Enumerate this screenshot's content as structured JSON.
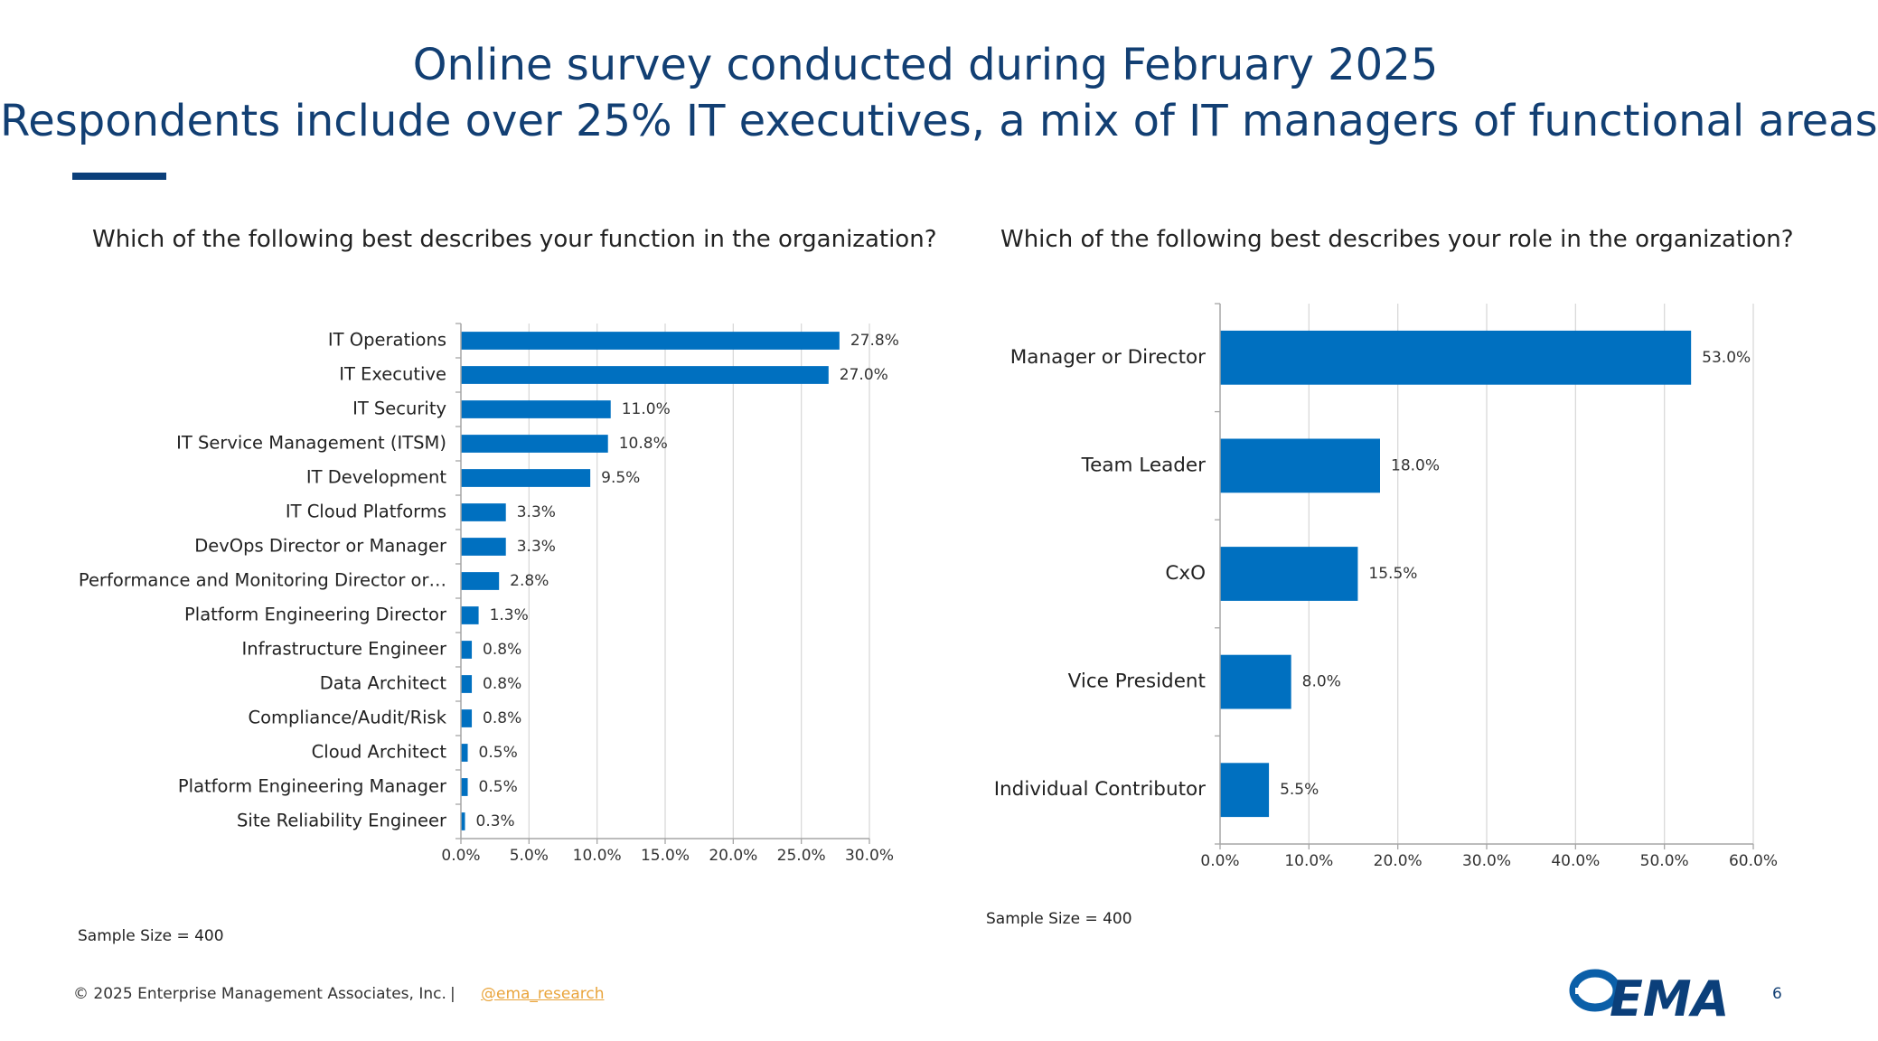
{
  "slide": {
    "title_line1": "Online survey conducted during February 2025",
    "title_line2": "Respondents include over 25% IT executives, a mix of IT managers of functional areas",
    "page_number": "6"
  },
  "footer": {
    "copyright": "© 2025 Enterprise Management Associates, Inc.",
    "separator": "|",
    "handle": "@ema_research"
  },
  "logo": {
    "text": "EMA"
  },
  "colors": {
    "bar": "#0070c0",
    "title": "#123f73",
    "accent_bar": "#0b3f7a",
    "handle": "#e9a43b",
    "grid": "#d9d9d9",
    "axis": "#a6a6a6"
  },
  "chart_data": [
    {
      "type": "bar",
      "orientation": "horizontal",
      "title": "Which of the following best describes your function in the organization?",
      "categories": [
        "IT Operations",
        "IT Executive",
        "IT Security",
        "IT Service Management (ITSM)",
        "IT Development",
        "IT Cloud Platforms",
        "DevOps Director or Manager",
        "Performance and Monitoring Director or…",
        "Platform Engineering Director",
        "Infrastructure Engineer",
        "Data Architect",
        "Compliance/Audit/Risk",
        "Cloud Architect",
        "Platform Engineering Manager",
        "Site Reliability Engineer"
      ],
      "values": [
        27.8,
        27.0,
        11.0,
        10.8,
        9.5,
        3.3,
        3.3,
        2.8,
        1.3,
        0.8,
        0.8,
        0.8,
        0.5,
        0.5,
        0.3
      ],
      "value_labels": [
        "27.8%",
        "27.0%",
        "11.0%",
        "10.8%",
        "9.5%",
        "3.3%",
        "3.3%",
        "2.8%",
        "1.3%",
        "0.8%",
        "0.8%",
        "0.8%",
        "0.5%",
        "0.5%",
        "0.3%"
      ],
      "xlim": [
        0,
        30
      ],
      "x_ticks": [
        0,
        5,
        10,
        15,
        20,
        25,
        30
      ],
      "x_tick_labels": [
        "0.0%",
        "5.0%",
        "10.0%",
        "15.0%",
        "20.0%",
        "25.0%",
        "30.0%"
      ],
      "grid": true,
      "sample_size": "Sample Size = 400"
    },
    {
      "type": "bar",
      "orientation": "horizontal",
      "title": "Which of the following best describes your role in the organization?",
      "categories": [
        "Manager or Director",
        "Team Leader",
        "CxO",
        "Vice President",
        "Individual Contributor"
      ],
      "values": [
        53.0,
        18.0,
        15.5,
        8.0,
        5.5
      ],
      "value_labels": [
        "53.0%",
        "18.0%",
        "15.5%",
        "8.0%",
        "5.5%"
      ],
      "xlim": [
        0,
        60
      ],
      "x_ticks": [
        0,
        10,
        20,
        30,
        40,
        50,
        60
      ],
      "x_tick_labels": [
        "0.0%",
        "10.0%",
        "20.0%",
        "30.0%",
        "40.0%",
        "50.0%",
        "60.0%"
      ],
      "grid": true,
      "sample_size": "Sample Size = 400"
    }
  ]
}
